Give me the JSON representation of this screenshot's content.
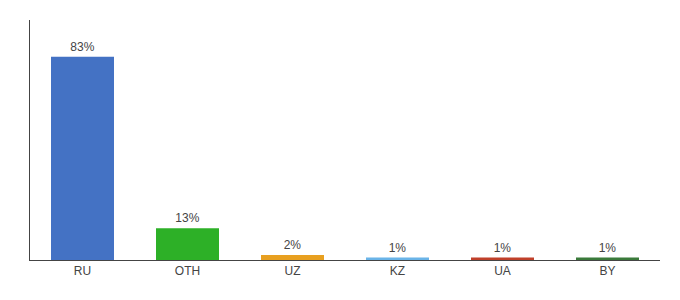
{
  "chart_data": {
    "type": "bar",
    "categories": [
      "RU",
      "OTH",
      "UZ",
      "KZ",
      "UA",
      "BY"
    ],
    "values": [
      83,
      13,
      2,
      1,
      1,
      1
    ],
    "value_labels": [
      "83%",
      "13%",
      "2%",
      "1%",
      "1%",
      "1%"
    ],
    "colors": [
      "#4472c4",
      "#2db027",
      "#e8a020",
      "#6ab4e8",
      "#c0402a",
      "#3a7a3a"
    ],
    "ylim": [
      0,
      98
    ],
    "yticks": [],
    "grid": false,
    "data_labels": true,
    "tick_labels": "x"
  }
}
